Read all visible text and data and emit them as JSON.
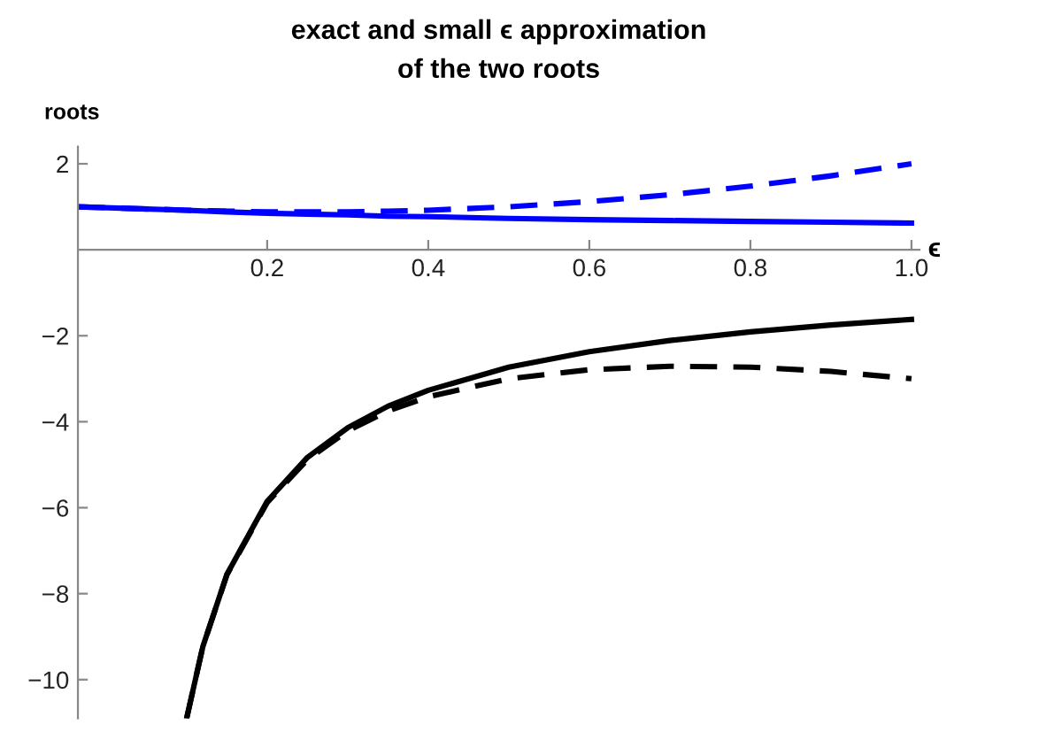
{
  "chart_data": {
    "type": "line",
    "title": "exact and small ϵ approximation\nof the two roots",
    "xlabel": "ϵ",
    "ylabel": "roots",
    "xlim": [
      -0.035,
      1.01
    ],
    "ylim": [
      -10.9,
      2.4
    ],
    "xticks": [
      0.2,
      0.4,
      0.6,
      0.8,
      {
        "value": 1,
        "label": "1.0"
      }
    ],
    "yticks": [
      {
        "value": -10,
        "label": "−10"
      },
      {
        "value": -8,
        "label": "−8"
      },
      {
        "value": -6,
        "label": "−6"
      },
      {
        "value": -4,
        "label": "−4"
      },
      {
        "value": -2,
        "label": "−2"
      },
      2
    ],
    "grid": false,
    "legend": false,
    "marker": "none",
    "series": [
      {
        "color": "#0000ff",
        "line_style": "solid",
        "x": [
          -0.035,
          0.1,
          0.15,
          0.2,
          0.25,
          0.3,
          0.35,
          0.4,
          0.5,
          0.6,
          0.7,
          0.8,
          0.9,
          1.0
        ],
        "values": [
          1.0,
          0.92,
          0.88,
          0.85,
          0.83,
          0.81,
          0.78,
          0.77,
          0.73,
          0.7,
          0.68,
          0.66,
          0.64,
          0.62
        ]
      },
      {
        "color": "#0000ff",
        "line_style": "dashed",
        "x": [
          -0.035,
          0.1,
          0.15,
          0.2,
          0.25,
          0.3,
          0.35,
          0.4,
          0.5,
          0.6,
          0.7,
          0.8,
          0.9,
          1.0
        ],
        "values": [
          1.0,
          0.92,
          0.9,
          0.88,
          0.88,
          0.88,
          0.9,
          0.92,
          1.0,
          1.12,
          1.28,
          1.48,
          1.72,
          2.0
        ]
      },
      {
        "color": "#000000",
        "line_style": "solid",
        "x": [
          0.1,
          0.12,
          0.15,
          0.2,
          0.25,
          0.3,
          0.35,
          0.4,
          0.5,
          0.6,
          0.7,
          0.8,
          0.9,
          1.0
        ],
        "values": [
          -10.9,
          -9.24,
          -7.55,
          -5.85,
          -4.83,
          -4.14,
          -3.64,
          -3.27,
          -2.73,
          -2.37,
          -2.11,
          -1.91,
          -1.75,
          -1.62
        ]
      },
      {
        "color": "#000000",
        "line_style": "dashed",
        "x": [
          0.1,
          0.12,
          0.15,
          0.2,
          0.25,
          0.3,
          0.35,
          0.4,
          0.5,
          0.6,
          0.7,
          0.8,
          0.9,
          1.0
        ],
        "values": [
          -10.9,
          -9.24,
          -7.56,
          -5.88,
          -4.88,
          -4.21,
          -3.75,
          -3.42,
          -3.0,
          -2.79,
          -2.71,
          -2.73,
          -2.83,
          -3.0
        ]
      }
    ]
  }
}
